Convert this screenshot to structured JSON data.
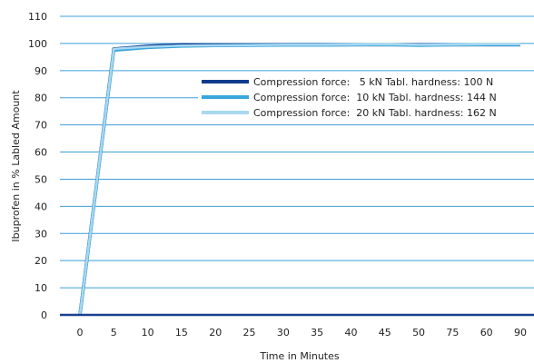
{
  "chart_data": {
    "type": "line",
    "title": "",
    "xlabel": "Time in Minutes",
    "ylabel": "Ibuprofen in % Labled Amount",
    "xlim": [
      0,
      90
    ],
    "ylim": [
      0,
      110
    ],
    "x_ticks": [
      "0",
      "5",
      "10",
      "15",
      "20",
      "25",
      "30",
      "35",
      "40",
      "45",
      "50",
      "75",
      "60",
      "90"
    ],
    "y_ticks": [
      0,
      10,
      20,
      30,
      40,
      50,
      60,
      70,
      80,
      90,
      100,
      110
    ],
    "grid": "horizontal",
    "legend_position": "center-right",
    "series": [
      {
        "name": "Compression force:   5 kN Tabl. hardness: 100 N",
        "color": "#0d3a8c",
        "x": [
          0,
          5,
          10,
          15,
          20,
          25,
          30,
          35,
          40,
          45,
          50,
          75,
          60,
          90
        ],
        "values": [
          0,
          98,
          99,
          99.5,
          99.5,
          99.5,
          99.5,
          99.5,
          99.5,
          99.5,
          99.5,
          99.5,
          99.5,
          99.5
        ]
      },
      {
        "name": "Compression force:  10 kN Tabl. hardness: 144 N",
        "color": "#3aa6dc",
        "x": [
          0,
          5,
          10,
          15,
          20,
          25,
          30,
          35,
          40,
          45,
          50,
          75,
          60,
          90
        ],
        "values": [
          0,
          97.5,
          98.5,
          99,
          99.2,
          99.3,
          99.4,
          99.4,
          99.5,
          99.6,
          99.3,
          99.5,
          99.6,
          99.6
        ]
      },
      {
        "name": "Compression force:  20 kN Tabl. hardness: 162 N",
        "color": "#a9d8f0",
        "x": [
          0,
          5,
          10,
          15,
          20,
          25,
          30,
          35,
          40,
          45,
          50,
          75,
          60,
          90
        ],
        "values": [
          0,
          98,
          98.8,
          99.2,
          99.3,
          99.4,
          99.5,
          99.5,
          99.6,
          99.7,
          99.5,
          99.6,
          99.7,
          99.7
        ]
      }
    ]
  }
}
